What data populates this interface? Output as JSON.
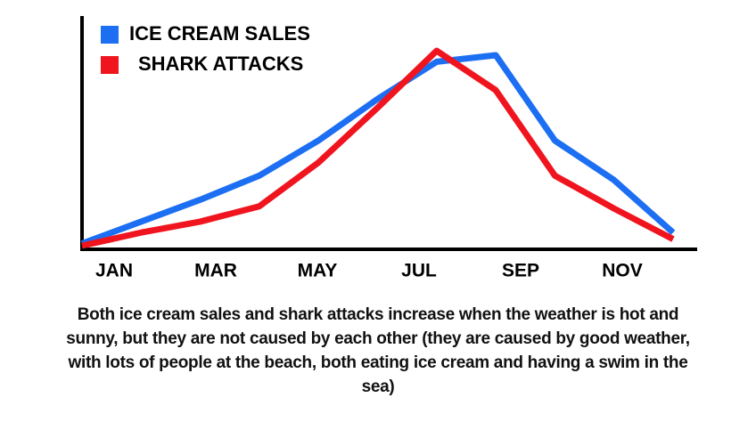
{
  "chart_data": {
    "type": "line",
    "categories": [
      "JAN",
      null,
      "MAR",
      null,
      "MAY",
      null,
      "JUL",
      null,
      "SEP",
      null,
      "NOV"
    ],
    "series": [
      {
        "name": "ICE CREAM SALES",
        "color": "#1c6ff2",
        "values": [
          1,
          11,
          21,
          32,
          48,
          67,
          84,
          87,
          48,
          30,
          6
        ]
      },
      {
        "name": "SHARK ATTACKS",
        "color": "#f0141e",
        "values": [
          0,
          6,
          11,
          18,
          38,
          63,
          89,
          71,
          32,
          17,
          3
        ]
      }
    ],
    "ylim": [
      0,
      100
    ],
    "legend": "top-left",
    "annotation": "Both ice cream sales and shark attacks increase when the weather is hot and sunny, but they are not caused by each other (they are caused by good weather, with lots of people at the beach, both eating ice cream and having a swim in the sea)"
  }
}
